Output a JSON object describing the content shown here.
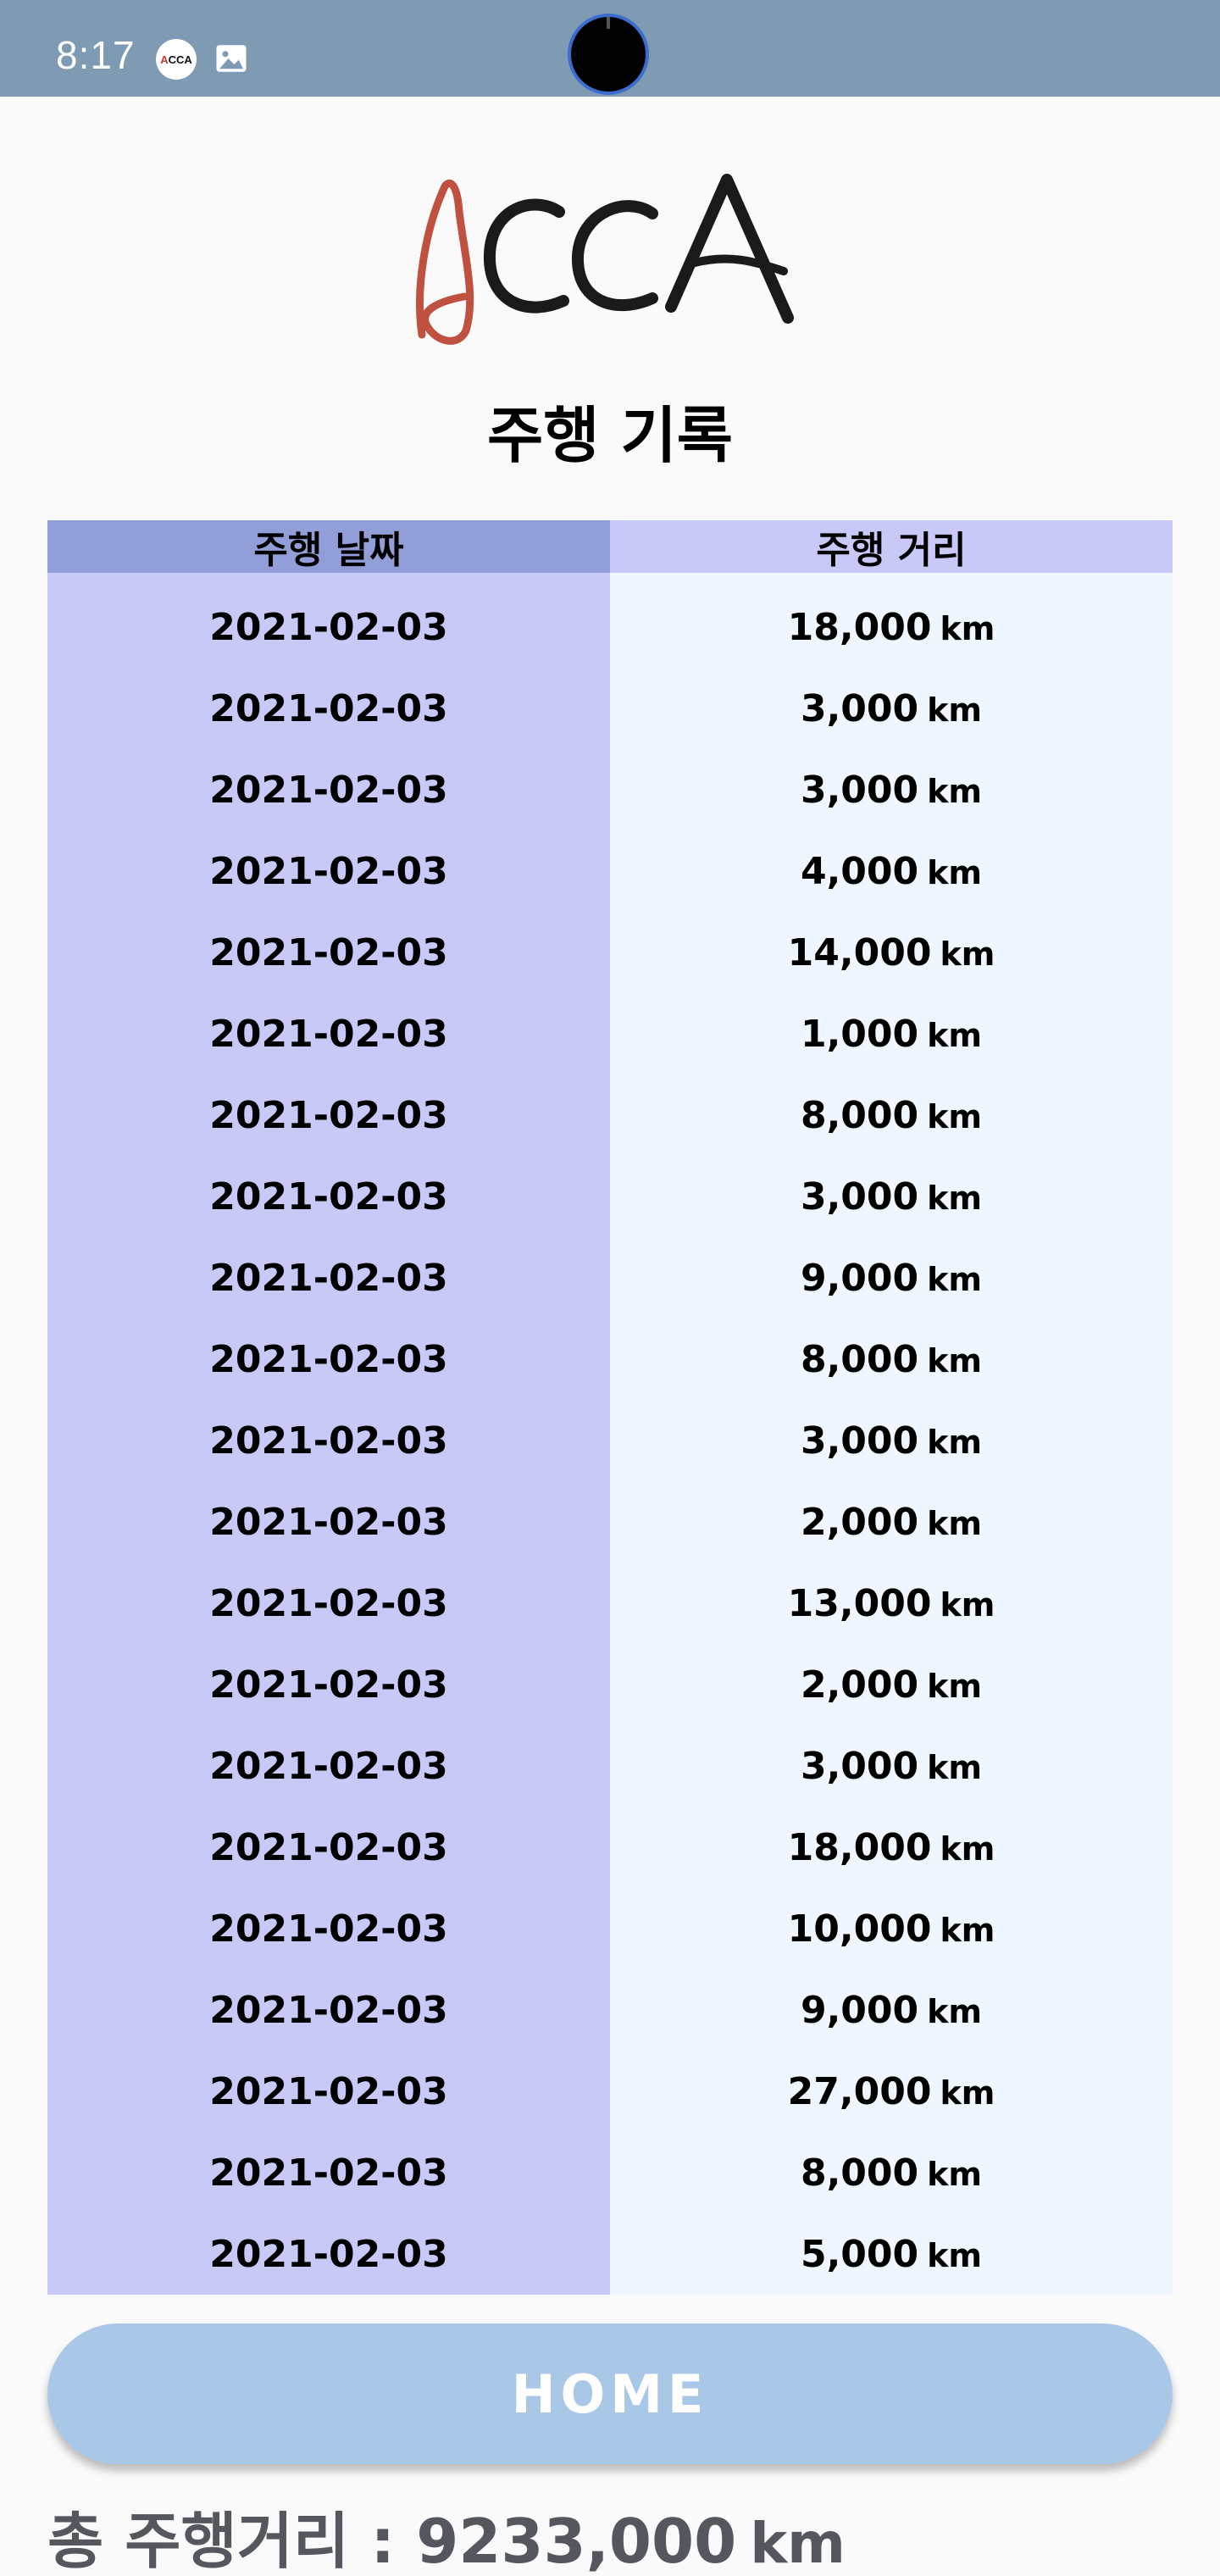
{
  "status_bar": {
    "time": "8:17",
    "app_icon_text": "ACCA",
    "image_icon": "image-icon",
    "color": "#7f9ab3"
  },
  "logo_text": "ACCA",
  "page_title": "주행 기록",
  "table": {
    "headers": {
      "date": "주행 날짜",
      "distance": "주행 거리"
    },
    "rows": [
      {
        "date": "2021-02-03",
        "distance": "18,000",
        "unit": "km"
      },
      {
        "date": "2021-02-03",
        "distance": "3,000",
        "unit": "km"
      },
      {
        "date": "2021-02-03",
        "distance": "3,000",
        "unit": "km"
      },
      {
        "date": "2021-02-03",
        "distance": "4,000",
        "unit": "km"
      },
      {
        "date": "2021-02-03",
        "distance": "14,000",
        "unit": "km"
      },
      {
        "date": "2021-02-03",
        "distance": "1,000",
        "unit": "km"
      },
      {
        "date": "2021-02-03",
        "distance": "8,000",
        "unit": "km"
      },
      {
        "date": "2021-02-03",
        "distance": "3,000",
        "unit": "km"
      },
      {
        "date": "2021-02-03",
        "distance": "9,000",
        "unit": "km"
      },
      {
        "date": "2021-02-03",
        "distance": "8,000",
        "unit": "km"
      },
      {
        "date": "2021-02-03",
        "distance": "3,000",
        "unit": "km"
      },
      {
        "date": "2021-02-03",
        "distance": "2,000",
        "unit": "km"
      },
      {
        "date": "2021-02-03",
        "distance": "13,000",
        "unit": "km"
      },
      {
        "date": "2021-02-03",
        "distance": "2,000",
        "unit": "km"
      },
      {
        "date": "2021-02-03",
        "distance": "3,000",
        "unit": "km"
      },
      {
        "date": "2021-02-03",
        "distance": "18,000",
        "unit": "km"
      },
      {
        "date": "2021-02-03",
        "distance": "10,000",
        "unit": "km"
      },
      {
        "date": "2021-02-03",
        "distance": "9,000",
        "unit": "km"
      },
      {
        "date": "2021-02-03",
        "distance": "27,000",
        "unit": "km"
      },
      {
        "date": "2021-02-03",
        "distance": "8,000",
        "unit": "km"
      },
      {
        "date": "2021-02-03",
        "distance": "5,000",
        "unit": "km"
      }
    ]
  },
  "home_button": "HOME",
  "total": {
    "label": "총 주행거리 : 9233,000",
    "unit": "km"
  },
  "colors": {
    "header_date": "#929ed8",
    "header_distance": "#c9c9f7",
    "date_column": "#c9c9f7",
    "distance_column": "#eff6fd",
    "button": "#a9c8e8",
    "logo_accent": "#c0503f"
  }
}
